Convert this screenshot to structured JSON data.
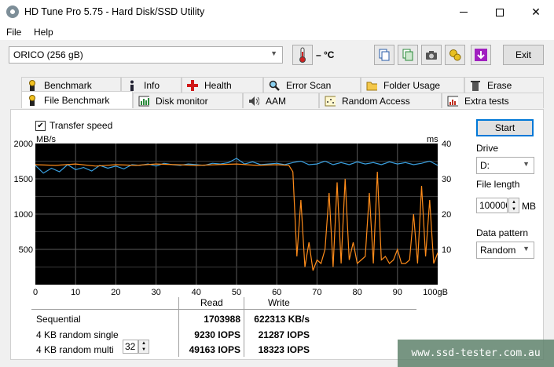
{
  "window": {
    "title": "HD Tune Pro 5.75 - Hard Disk/SSD Utility",
    "icon": "hdtune-disc-icon"
  },
  "menu": {
    "items": [
      "File",
      "Help"
    ]
  },
  "toolbar": {
    "drive": "ORICO (256 gB)",
    "temperature": "– °C",
    "exit_label": "Exit",
    "icons": [
      "thermometer-icon",
      "copy-icon",
      "copy-all-icon",
      "camera-icon",
      "options-icon",
      "download-icon"
    ]
  },
  "tabs": {
    "row1": [
      {
        "label": "Benchmark",
        "icon": "benchmark-icon"
      },
      {
        "label": "Info",
        "icon": "info-icon"
      },
      {
        "label": "Health",
        "icon": "health-icon"
      },
      {
        "label": "Error Scan",
        "icon": "error-scan-icon"
      },
      {
        "label": "Folder Usage",
        "icon": "folder-icon"
      },
      {
        "label": "Erase",
        "icon": "erase-icon"
      }
    ],
    "row2": [
      {
        "label": "File Benchmark",
        "icon": "file-benchmark-icon",
        "active": true
      },
      {
        "label": "Disk monitor",
        "icon": "disk-monitor-icon"
      },
      {
        "label": "AAM",
        "icon": "aam-icon"
      },
      {
        "label": "Random Access",
        "icon": "random-access-icon"
      },
      {
        "label": "Extra tests",
        "icon": "extra-tests-icon"
      }
    ]
  },
  "benchmark": {
    "transfer_speed_label": "Transfer speed",
    "transfer_speed_checked": true,
    "start_label": "Start",
    "drive_label": "Drive",
    "drive_value": "D:",
    "file_length_label": "File length",
    "file_length_value": "100000",
    "file_length_unit": "MB",
    "data_pattern_label": "Data pattern",
    "data_pattern_value": "Random"
  },
  "chart_data": {
    "type": "line",
    "ylabel_left": "MB/s",
    "ylabel_right": "ms",
    "y_ticks_left": [
      2000,
      1500,
      1000,
      500
    ],
    "y_ticks_right": [
      40,
      30,
      20,
      10
    ],
    "x_ticks": [
      "0",
      "10",
      "20",
      "30",
      "40",
      "50",
      "60",
      "70",
      "80",
      "90",
      "100gB"
    ],
    "xlim": [
      0,
      100
    ],
    "ylim_left": [
      0,
      2000
    ],
    "ylim_right": [
      0,
      40
    ],
    "grid": true,
    "colors": {
      "read": "#3aa0e0",
      "write": "#ff8c1a",
      "grid": "#5a5a5a",
      "background": "#000000"
    },
    "series": [
      {
        "color": "#3aa0e0",
        "x": [
          0,
          2,
          4,
          6,
          8,
          10,
          12,
          14,
          16,
          18,
          20,
          22,
          24,
          26,
          28,
          30,
          32,
          34,
          36,
          38,
          40,
          42,
          44,
          46,
          48,
          50,
          52,
          54,
          56,
          58,
          60,
          62,
          64,
          66,
          68,
          70,
          72,
          74,
          76,
          78,
          80,
          82,
          84,
          86,
          88,
          90,
          92,
          94,
          96,
          98,
          100
        ],
        "y": [
          1690,
          1580,
          1650,
          1600,
          1700,
          1630,
          1660,
          1610,
          1690,
          1650,
          1680,
          1640,
          1700,
          1690,
          1710,
          1680,
          1720,
          1700,
          1690,
          1710,
          1700,
          1690,
          1720,
          1710,
          1730,
          1790,
          1710,
          1740,
          1700,
          1710,
          1720,
          1700,
          1730,
          1750,
          1700,
          1710,
          1750,
          1700,
          1730,
          1700,
          1740,
          1710,
          1730,
          1700,
          1740,
          1710,
          1730,
          1700,
          1720,
          1750,
          1690
        ]
      },
      {
        "color": "#ff8c1a",
        "x": [
          0,
          5,
          10,
          15,
          20,
          25,
          30,
          35,
          40,
          45,
          50,
          55,
          60,
          63,
          64,
          65,
          66,
          67,
          68,
          69,
          70,
          71,
          72,
          73,
          74,
          75,
          76,
          77,
          78,
          79,
          80,
          81,
          82,
          83,
          84,
          85,
          86,
          87,
          88,
          89,
          90,
          91,
          92,
          93,
          94,
          95,
          96,
          97,
          98,
          99,
          100
        ],
        "y": [
          1700,
          1690,
          1710,
          1680,
          1700,
          1690,
          1710,
          1700,
          1690,
          1700,
          1710,
          1690,
          1700,
          1690,
          1600,
          400,
          1200,
          250,
          600,
          200,
          350,
          300,
          500,
          1300,
          250,
          1450,
          300,
          1500,
          350,
          600,
          300,
          350,
          400,
          1300,
          300,
          1600,
          350,
          400,
          300,
          350,
          500,
          300,
          300,
          350,
          1000,
          300,
          1400,
          400,
          1200,
          300,
          450
        ]
      }
    ]
  },
  "results": {
    "headers": [
      "Read",
      "Write"
    ],
    "rows": [
      {
        "label": "Sequential",
        "read": "1703988",
        "write": "622313 KB/s"
      },
      {
        "label": "4 KB random single",
        "read": "9230 IOPS",
        "write": "21287 IOPS"
      },
      {
        "label": "4 KB random multi",
        "read": "49163 IOPS",
        "write": "18323 IOPS"
      }
    ],
    "queue_depth": "32"
  },
  "watermark": "www.ssd-tester.com.au"
}
